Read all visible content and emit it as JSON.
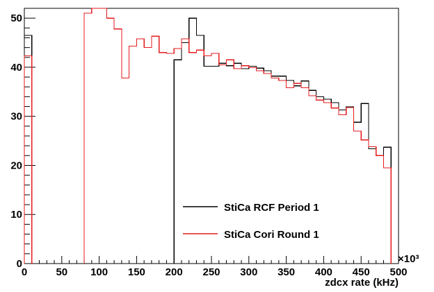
{
  "chart_data": {
    "type": "histogram",
    "title": "",
    "xlabel": "zdcx rate (kHz)",
    "ylabel": "",
    "x_multiplier": "×10³",
    "xlim": [
      0,
      500
    ],
    "ylim": [
      0,
      52
    ],
    "bin_width": 10,
    "bin_edges_start": 0,
    "x_ticks": [
      0,
      50,
      100,
      150,
      200,
      250,
      300,
      350,
      400,
      450,
      500
    ],
    "x_tick_labels": [
      "0",
      "50",
      "100",
      "150",
      "200",
      "250",
      "300",
      "350",
      "400",
      "450",
      "500"
    ],
    "y_ticks": [
      0,
      10,
      20,
      30,
      40,
      50
    ],
    "y_tick_labels": [
      "0",
      "10",
      "20",
      "30",
      "40",
      "50"
    ],
    "legend_position": "lower-center",
    "series": [
      {
        "name": "StiCa RCF Period 1",
        "color": "#000000",
        "bins": [
          [
            0,
            46.5
          ],
          [
            200,
            41.5
          ],
          [
            210,
            45
          ],
          [
            220,
            50
          ],
          [
            230,
            46.5
          ],
          [
            240,
            40.2
          ],
          [
            250,
            40.2
          ],
          [
            260,
            40.8
          ],
          [
            270,
            40.3
          ],
          [
            280,
            40.8
          ],
          [
            290,
            39.7
          ],
          [
            300,
            40.2
          ],
          [
            310,
            39.8
          ],
          [
            320,
            39.3
          ],
          [
            330,
            38.2
          ],
          [
            340,
            38.2
          ],
          [
            350,
            37.3
          ],
          [
            360,
            36.2
          ],
          [
            370,
            37.2
          ],
          [
            380,
            35.3
          ],
          [
            390,
            34
          ],
          [
            400,
            33.5
          ],
          [
            410,
            32.8
          ],
          [
            420,
            31.3
          ],
          [
            430,
            31.9
          ],
          [
            440,
            28.8
          ],
          [
            450,
            32.6
          ],
          [
            460,
            23.4
          ],
          [
            470,
            22
          ],
          [
            480,
            23.7
          ]
        ]
      },
      {
        "name": "StiCa Cori Round 1",
        "color": "#e41a1c",
        "bins": [
          [
            0,
            42.3
          ],
          [
            80,
            51
          ],
          [
            90,
            52
          ],
          [
            100,
            52.5
          ],
          [
            110,
            50
          ],
          [
            120,
            47.8
          ],
          [
            130,
            37.8
          ],
          [
            140,
            44.3
          ],
          [
            150,
            45.8
          ],
          [
            160,
            44
          ],
          [
            170,
            46.3
          ],
          [
            180,
            43
          ],
          [
            190,
            42.8
          ],
          [
            200,
            43.8
          ],
          [
            210,
            45.8
          ],
          [
            220,
            43
          ],
          [
            230,
            43.5
          ],
          [
            240,
            42.3
          ],
          [
            250,
            42.8
          ],
          [
            260,
            40.5
          ],
          [
            270,
            41.5
          ],
          [
            280,
            39.7
          ],
          [
            290,
            40.3
          ],
          [
            300,
            39.9
          ],
          [
            310,
            39.3
          ],
          [
            320,
            38.7
          ],
          [
            330,
            37.8
          ],
          [
            340,
            37.3
          ],
          [
            350,
            35.8
          ],
          [
            360,
            36.7
          ],
          [
            370,
            35.8
          ],
          [
            380,
            34.2
          ],
          [
            390,
            33.3
          ],
          [
            400,
            32.8
          ],
          [
            410,
            31.7
          ],
          [
            420,
            30.3
          ],
          [
            430,
            31.8
          ],
          [
            440,
            27
          ],
          [
            450,
            25.2
          ],
          [
            460,
            23.8
          ],
          [
            470,
            22
          ],
          [
            480,
            19.5
          ]
        ]
      }
    ]
  }
}
